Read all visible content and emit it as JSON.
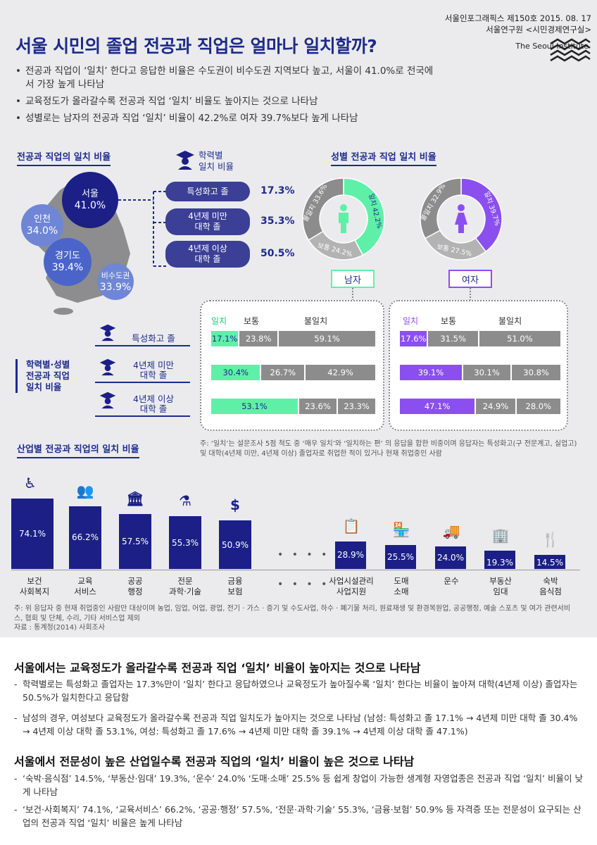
{
  "header": {
    "issue_line": "서울인포그래픽스 제150호 2015. 08. 17",
    "org_line": "서울연구원 <시민경제연구실>",
    "institute": "The Seoul Institute",
    "title": "서울 시민의 졸업 전공과 직업은 얼마나 일치할까?"
  },
  "bullets": [
    "전공과 직업이 ‘일치’ 한다고 응답한 비율은 수도권이 비수도권 지역보다 높고, 서울이 41.0%로 전국에서 가장 높게 나타남",
    "교육정도가 올라갈수록 전공과 직업 ‘일치’ 비율도 높아지는 것으로 나타남",
    "성별로는 남자의 전공과 직업 ‘일치’ 비율이 42.2%로 여자 39.7%보다 높게 나타남"
  ],
  "region": {
    "heading": "전공과 직업의 일치 비율",
    "items": [
      {
        "name": "서울",
        "value": "41.0%"
      },
      {
        "name": "인천",
        "value": "34.0%"
      },
      {
        "name": "경기도",
        "value": "39.4%"
      },
      {
        "name": "비수도권",
        "value": "33.9%"
      }
    ]
  },
  "education": {
    "heading_line1": "학력별",
    "heading_line2": "일치 비율",
    "items": [
      {
        "label": "특성화고 졸",
        "value": "17.3%"
      },
      {
        "label": "4년제 미만\n대학 졸",
        "value": "35.3%"
      },
      {
        "label": "4년제 이상\n대학 졸",
        "value": "50.5%"
      }
    ]
  },
  "gender": {
    "heading": "성별 전공과 직업 일치 비율",
    "male": {
      "tag": "남자",
      "match_label": "일치 42.2%",
      "normal_label": "보통 24.2%",
      "mismatch_label": "불일치 33.6%"
    },
    "female": {
      "tag": "여자",
      "match_label": "일치 39.7%",
      "normal_label": "보통 27.5%",
      "mismatch_label": "불일치 32.9%"
    }
  },
  "edu_gender": {
    "heading": "학력별·성별\n전공과 직업\n일치 비율",
    "rows": [
      "특성화고 졸",
      "4년제 미만\n대학 졸",
      "4년제 이상\n대학 졸"
    ],
    "col_match": "일치",
    "col_normal": "보통",
    "col_mismatch": "불일치"
  },
  "colors": {
    "navy": "#1d2b8a",
    "male": "#5ff0a8",
    "female": "#8b4ff0",
    "gray": "#8c8c8c",
    "map": "#8d8d8f"
  },
  "chart_data": [
    {
      "type": "pie",
      "title": "남자",
      "labels": [
        "일치",
        "보통",
        "불일치"
      ],
      "values": [
        42.2,
        24.2,
        33.6
      ]
    },
    {
      "type": "pie",
      "title": "여자",
      "labels": [
        "일치",
        "보통",
        "불일치"
      ],
      "values": [
        39.7,
        27.5,
        32.9
      ]
    },
    {
      "type": "bar",
      "title": "남자",
      "stacked": true,
      "categories": [
        "특성화고 졸",
        "4년제 미만 대학 졸",
        "4년제 이상 대학 졸"
      ],
      "series": [
        {
          "name": "일치",
          "values": [
            17.1,
            30.4,
            53.1
          ]
        },
        {
          "name": "보통",
          "values": [
            23.8,
            26.7,
            23.6
          ]
        },
        {
          "name": "불일치",
          "values": [
            59.1,
            42.9,
            23.3
          ]
        }
      ]
    },
    {
      "type": "bar",
      "title": "여자",
      "stacked": true,
      "categories": [
        "특성화고 졸",
        "4년제 미만 대학 졸",
        "4년제 이상 대학 졸"
      ],
      "series": [
        {
          "name": "일치",
          "values": [
            17.6,
            39.1,
            47.1
          ]
        },
        {
          "name": "보통",
          "values": [
            31.5,
            30.1,
            24.9
          ]
        },
        {
          "name": "불일치",
          "values": [
            51.0,
            30.8,
            28.0
          ]
        }
      ]
    },
    {
      "type": "bar",
      "title": "산업별 전공과 직업의 일치 비율",
      "categories": [
        "보건\n사회복지",
        "교육\n서비스",
        "공공\n행정",
        "전문\n과학·기술",
        "금융\n보험",
        "사업시설관리\n사업지원",
        "도매\n소매",
        "운수",
        "부동산\n임대",
        "숙박\n음식점"
      ],
      "values": [
        74.1,
        66.2,
        57.5,
        55.3,
        50.9,
        28.9,
        25.5,
        24.0,
        19.3,
        14.5
      ]
    }
  ],
  "notes": {
    "gender_note": "주: ‘일치’는 설문조사 5점 척도 중 ‘매우 일치’와 ‘일치하는 편’ 의 응답을 합한 비중이며 응답자는 특성화고(구 전문계고, 실업고) 및 대학(4년제 미만, 4년제 이상) 졸업자로 취업한 적이 있거나 현재 취업중인 사람",
    "industry_note": "주: 위 응답자 중 현재 취업중인 사람만 대상이며 농업, 임업, 어업, 광업, 전기 · 가스 · 증기 및 수도사업, 하수 · 폐기물 처리, 원료재생 및 환경복원업, 공공행정, 예술 스포츠 및 여가 관련서비스, 협회 및 단체, 수리, 기타 서비스업 제외",
    "source": "자료 : 통계청(2014) 사회조사"
  },
  "industry": {
    "heading": "산업별 전공과 직업의 일치 비율",
    "dots": "• • • •"
  },
  "bottom": {
    "h1": "서울에서는 교육정도가 올라갈수록 전공과 직업 ‘일치’ 비율이 높아지는 것으로 나타남",
    "p1": "학력별로는 특성화고 졸업자는 17.3%만이 ‘일치’ 한다고 응답하였으나 교육정도가 높아질수록 ‘일치’ 한다는 비율이 높아져 대학(4년제 이상) 졸업자는 50.5%가 일치한다고 응답함",
    "p2": "남성의 경우, 여성보다 교육정도가 올라갈수록 전공과 직업 일치도가 높아지는 것으로 나타남 (남성: 특성화고 졸 17.1% → 4년제 미만 대학 졸 30.4% → 4년제 이상 대학 졸 53.1%, 여성: 특성화고 졸 17.6% → 4년제 미만 대학 졸 39.1% → 4년제 이상 대학 졸 47.1%)",
    "h2": "서울에서 전문성이 높은 산업일수록 전공과 직업의 ‘일치’ 비율이 높은 것으로 나타남",
    "p3": "‘숙박·음식점’ 14.5%, ‘부동산·임대’ 19.3%, ‘운수’ 24.0% ‘도매·소매’ 25.5% 등 쉽게 창업이 가능한 생계형 자영업종은 전공과 직업 ‘일치’ 비율이 낮게 나타남",
    "p4": "‘보건·사회복지’ 74.1%, ‘교육서비스’ 66.2%, ‘공공·행정’ 57.5%, ‘전문·과학·기술’ 55.3%, ‘금융·보험’ 50.9% 등 자격증 또는 전문성이 요구되는 산업의 전공과 직업 ‘일치’ 비율은 높게 나타남"
  }
}
